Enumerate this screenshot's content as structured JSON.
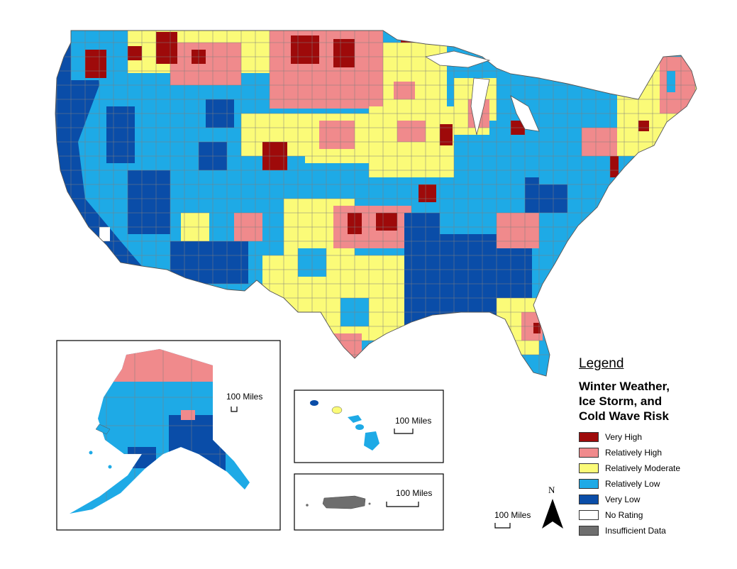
{
  "legend": {
    "heading": "Legend",
    "subtitle_lines": [
      "Winter Weather,",
      "Ice Storm, and",
      "Cold Wave Risk"
    ],
    "items": [
      {
        "label": "Very High",
        "color": "#9e0a0a"
      },
      {
        "label": "Relatively High",
        "color": "#f08a8c"
      },
      {
        "label": "Relatively Moderate",
        "color": "#fbfb78"
      },
      {
        "label": "Relatively Low",
        "color": "#1eaae6"
      },
      {
        "label": "Very Low",
        "color": "#0a4da8"
      },
      {
        "label": "No Rating",
        "color": "#ffffff"
      },
      {
        "label": "Insufficient Data",
        "color": "#6e6e6e"
      }
    ]
  },
  "scale_labels": {
    "alaska": "100 Miles",
    "hawaii": "100 Miles",
    "puerto_rico": "100 Miles",
    "conus": "100 Miles"
  },
  "north_arrow": {
    "label": "N"
  },
  "regions": {
    "conus": {
      "name": "contiguous-united-states"
    },
    "alaska": {
      "name": "alaska"
    },
    "hawaii": {
      "name": "hawaii"
    },
    "puerto_rico": {
      "name": "puerto-rico"
    }
  }
}
